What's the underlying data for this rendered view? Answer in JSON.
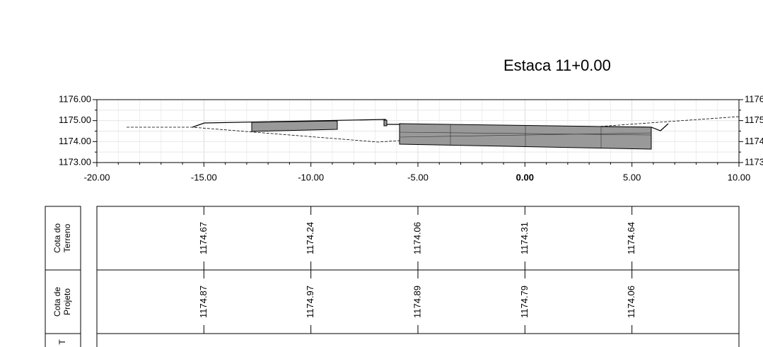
{
  "header": {
    "title": "Estaca 11+0.00"
  },
  "section": {
    "y_labels": [
      "1176.00",
      "1175.00",
      "1174.00",
      "1173.00"
    ],
    "x_labels": [
      "-20.00",
      "-15.00",
      "-10.00",
      "-5.00",
      "0.00",
      "5.00",
      "10.00"
    ]
  },
  "table": {
    "rows": [
      {
        "label": "Cota do Terreno",
        "values": [
          "1174.67",
          "1174.24",
          "1174.06",
          "1174.31",
          "1174.64"
        ]
      },
      {
        "label": "Cota de Projeto",
        "values": [
          "1174.87",
          "1174.97",
          "1174.89",
          "1174.79",
          "1174.06"
        ]
      },
      {
        "label": "T"
      }
    ]
  }
}
